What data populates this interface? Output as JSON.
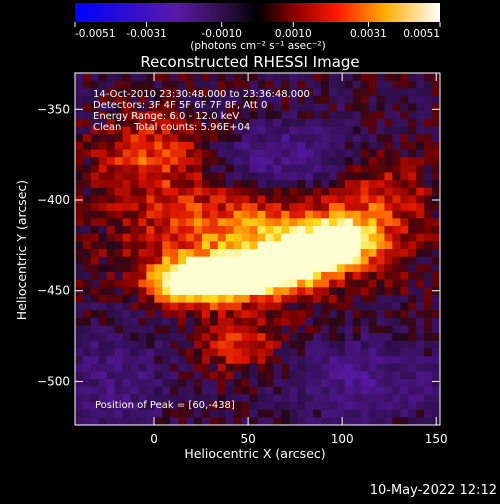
{
  "colorbar": {
    "ticks": [
      "-0.0051",
      "-0.0031",
      "-0.0010",
      "0.0010",
      "0.0031",
      "0.0051"
    ],
    "units": "(photons cm⁻² s⁻¹ asec⁻²)",
    "range": [
      -0.0051,
      0.0051
    ]
  },
  "annotations": {
    "time": "14-Oct-2010 23:30:48.000 to 23:36:48.000",
    "detectors": "Detectors: 3F 4F 5F 6F 7F 8F, Att 0",
    "energy": "Energy Range: 6.0 - 12.0 keV",
    "clean": "Clean    Total counts: 5.96E+04",
    "peak": "Position of Peak = [60,-438]"
  },
  "footer": {
    "timestamp": "10-May-2022 12:12"
  },
  "colors": {
    "background": "#000000",
    "text": "#ffffff"
  },
  "chart_data": {
    "type": "heatmap",
    "title": "Reconstructed RHESSI Image",
    "xlabel": "Heliocentric X (arcsec)",
    "ylabel": "Heliocentric Y (arcsec)",
    "xlim": [
      -42,
      152
    ],
    "ylim": [
      -524,
      -330
    ],
    "x_ticks": [
      0,
      50,
      100,
      150
    ],
    "y_ticks": [
      -350,
      -400,
      -450,
      -500
    ],
    "x_tick_labels": [
      "0",
      "50",
      "100",
      "150"
    ],
    "y_tick_labels": [
      "−350",
      "−400",
      "−450",
      "−500"
    ],
    "peak_position": [
      60,
      -438
    ],
    "colormap": "blue-purple-red-yellow-white"
  }
}
